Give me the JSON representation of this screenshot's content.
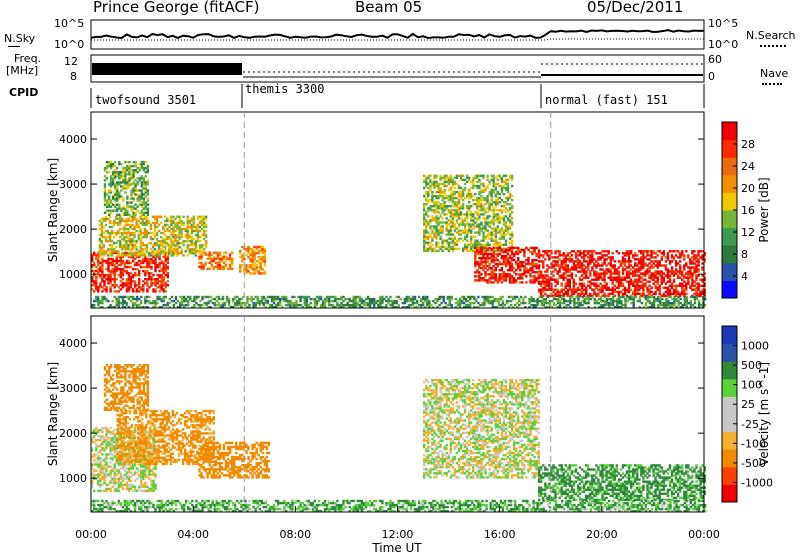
{
  "header": {
    "station": "Prince George (fitACF)",
    "beam": "Beam 05",
    "date": "05/Dec/2011"
  },
  "top_panels": {
    "nsky_label": "N.Sky",
    "nsky_ticks": [
      "10^5",
      "10^0"
    ],
    "nsearch_label": "N.Search",
    "nsearch_ticks": [
      "10^5",
      "10^0"
    ],
    "freq_label_1": "Freq.",
    "freq_label_2": "[MHz]",
    "freq_ticks": [
      "12",
      "8"
    ],
    "nave_label": "Nave",
    "nave_ticks": [
      "60",
      "0"
    ],
    "cpid_label": "CPID"
  },
  "modes": [
    {
      "name": "twofsound 3501",
      "start_hour": 0
    },
    {
      "name": "themis 3300",
      "start_hour": 6
    },
    {
      "name": "normal (fast) 151",
      "start_hour": 18
    }
  ],
  "colors": {
    "power_scale": [
      "#0a0aff",
      "#2a52a8",
      "#2e7a3a",
      "#3c9a4a",
      "#76b63a",
      "#f0c800",
      "#f29000",
      "#ea6a10",
      "#ff2a00",
      "#ee0000"
    ],
    "velocity_scale": [
      "#ee0000",
      "#ff4000",
      "#f28a00",
      "#f2b030",
      "#c8c8c8",
      "#c8c8c8",
      "#5ad03a",
      "#2e8a3a",
      "#2a52a8",
      "#1a3ab8"
    ],
    "velocity_ground": "#c8c8c8"
  },
  "chart_data": [
    {
      "type": "heatmap",
      "name": "power",
      "xlabel": "",
      "ylabel": "Slant Range [km]",
      "xlim": [
        0,
        24
      ],
      "ylim": [
        250,
        4600
      ],
      "yticks": [
        "1000",
        "2000",
        "3000",
        "4000"
      ],
      "colorbar_label": "Power [dB]",
      "colorbar_ticks": [
        "4",
        "8",
        "12",
        "16",
        "20",
        "24",
        "28"
      ],
      "colorbar_range": [
        0,
        30
      ],
      "regions": [
        {
          "t": [
            0.0,
            3.0
          ],
          "r": [
            600,
            1500
          ],
          "value": 26
        },
        {
          "t": [
            0.3,
            4.5
          ],
          "r": [
            1400,
            2300
          ],
          "value": 16
        },
        {
          "t": [
            0.5,
            2.2
          ],
          "r": [
            2300,
            3500
          ],
          "value": 12
        },
        {
          "t": [
            4.2,
            5.5
          ],
          "r": [
            1100,
            1500
          ],
          "value": 22
        },
        {
          "t": [
            5.8,
            6.8
          ],
          "r": [
            1000,
            1600
          ],
          "value": 20
        },
        {
          "t": [
            13.0,
            16.5
          ],
          "r": [
            1500,
            3200
          ],
          "value": 14
        },
        {
          "t": [
            15.0,
            17.5
          ],
          "r": [
            800,
            1600
          ],
          "value": 27
        },
        {
          "t": [
            17.5,
            24.0
          ],
          "r": [
            500,
            1500
          ],
          "value": 28
        },
        {
          "t": [
            0.0,
            24.0
          ],
          "r": [
            250,
            500
          ],
          "value": 10
        }
      ]
    },
    {
      "type": "heatmap",
      "name": "velocity",
      "xlabel": "Time UT",
      "ylabel": "Slant Range [km]",
      "xlim": [
        0,
        24
      ],
      "ylim": [
        250,
        4600
      ],
      "xticks": [
        "00:00",
        "04:00",
        "08:00",
        "12:00",
        "16:00",
        "20:00",
        "00:00"
      ],
      "yticks": [
        "1000",
        "2000",
        "3000",
        "4000"
      ],
      "colorbar_label": "Velocity [m s^-1]",
      "colorbar_ticks": [
        "1000",
        "500",
        "100",
        "25",
        "-25",
        "-100",
        "-500",
        "-1000"
      ],
      "regions": [
        {
          "t": [
            0.0,
            2.5
          ],
          "r": [
            700,
            2100
          ],
          "value": 0
        },
        {
          "t": [
            1.0,
            4.8
          ],
          "r": [
            1300,
            2500
          ],
          "value": -150
        },
        {
          "t": [
            0.5,
            2.2
          ],
          "r": [
            2500,
            3500
          ],
          "value": -200
        },
        {
          "t": [
            4.2,
            7.0
          ],
          "r": [
            1000,
            1800
          ],
          "value": -300
        },
        {
          "t": [
            13.0,
            17.5
          ],
          "r": [
            1000,
            3200
          ],
          "value": 0
        },
        {
          "t": [
            17.5,
            24.0
          ],
          "r": [
            500,
            1300
          ],
          "value": 150
        },
        {
          "t": [
            0.0,
            24.0
          ],
          "r": [
            250,
            500
          ],
          "value": 100
        }
      ]
    }
  ]
}
